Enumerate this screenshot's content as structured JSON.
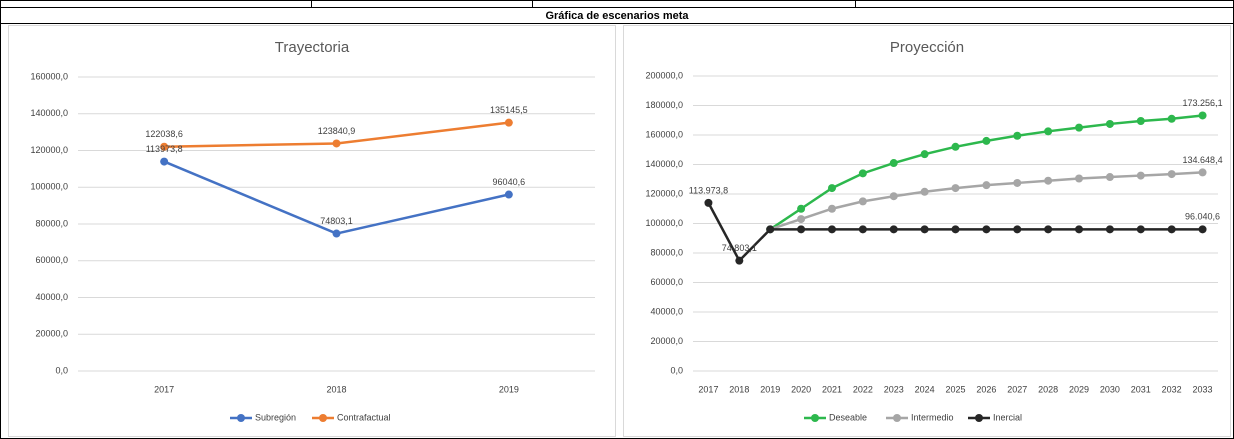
{
  "title": "Gráfica de escenarios meta",
  "chart_data": [
    {
      "type": "line",
      "title": "Trayectoria",
      "categories": [
        "2017",
        "2018",
        "2019"
      ],
      "ylim": [
        0,
        160000
      ],
      "yticks": [
        {
          "value": 0,
          "label": "0,0"
        },
        {
          "value": 20000,
          "label": "20000,0"
        },
        {
          "value": 40000,
          "label": "40000,0"
        },
        {
          "value": 60000,
          "label": "60000,0"
        },
        {
          "value": 80000,
          "label": "80000,0"
        },
        {
          "value": 100000,
          "label": "100000,0"
        },
        {
          "value": 120000,
          "label": "120000,0"
        },
        {
          "value": 140000,
          "label": "140000,0"
        },
        {
          "value": 160000,
          "label": "160000,0"
        }
      ],
      "grid": true,
      "series": [
        {
          "name": "Subregión",
          "color": "#4472c4",
          "values": [
            113973.8,
            74803.1,
            96040.6
          ],
          "value_labels": [
            "113973,8",
            "74803,1",
            "96040,6"
          ]
        },
        {
          "name": "Contrafactual",
          "color": "#ed7d31",
          "values": [
            122038.6,
            123840.9,
            135145.5
          ],
          "value_labels": [
            "122038,6",
            "123840,9",
            "135145,5"
          ]
        }
      ]
    },
    {
      "type": "line",
      "title": "Proyección",
      "categories": [
        "2017",
        "2018",
        "2019",
        "2020",
        "2021",
        "2022",
        "2023",
        "2024",
        "2025",
        "2026",
        "2027",
        "2028",
        "2029",
        "2030",
        "2031",
        "2032",
        "2033"
      ],
      "ylim": [
        0,
        200000
      ],
      "yticks": [
        {
          "value": 0,
          "label": "0,0"
        },
        {
          "value": 20000,
          "label": "20000,0"
        },
        {
          "value": 40000,
          "label": "40000,0"
        },
        {
          "value": 60000,
          "label": "60000,0"
        },
        {
          "value": 80000,
          "label": "80000,0"
        },
        {
          "value": 100000,
          "label": "100000,0"
        },
        {
          "value": 120000,
          "label": "120000,0"
        },
        {
          "value": 140000,
          "label": "140000,0"
        },
        {
          "value": 160000,
          "label": "160000,0"
        },
        {
          "value": 180000,
          "label": "180000,0"
        },
        {
          "value": 200000,
          "label": "200000,0"
        }
      ],
      "grid": true,
      "series": [
        {
          "name": "Deseable",
          "color": "#2db84d",
          "values": [
            null,
            null,
            96040.6,
            110000,
            124000,
            134000,
            141000,
            147000,
            152000,
            156000,
            159500,
            162500,
            165000,
            167500,
            169500,
            171000,
            173256.1
          ],
          "value_labels": [
            null,
            null,
            null,
            null,
            null,
            null,
            null,
            null,
            null,
            null,
            null,
            null,
            null,
            null,
            null,
            null,
            "173.256,1"
          ]
        },
        {
          "name": "Intermedio",
          "color": "#a6a6a6",
          "values": [
            null,
            null,
            96040.6,
            103000,
            110000,
            115000,
            118500,
            121500,
            124000,
            126000,
            127500,
            129000,
            130500,
            131500,
            132500,
            133500,
            134648.4
          ],
          "value_labels": [
            null,
            null,
            null,
            null,
            null,
            null,
            null,
            null,
            null,
            null,
            null,
            null,
            null,
            null,
            null,
            null,
            "134.648,4"
          ]
        },
        {
          "name": "Inercial",
          "color": "#262626",
          "values": [
            113973.8,
            74803.1,
            96040.6,
            96040.6,
            96040.6,
            96040.6,
            96040.6,
            96040.6,
            96040.6,
            96040.6,
            96040.6,
            96040.6,
            96040.6,
            96040.6,
            96040.6,
            96040.6,
            96040.6
          ],
          "value_labels": [
            "113.973,8",
            "74.803,1",
            null,
            null,
            null,
            null,
            null,
            null,
            null,
            null,
            null,
            null,
            null,
            null,
            null,
            null,
            "96.040,6"
          ]
        }
      ]
    }
  ]
}
